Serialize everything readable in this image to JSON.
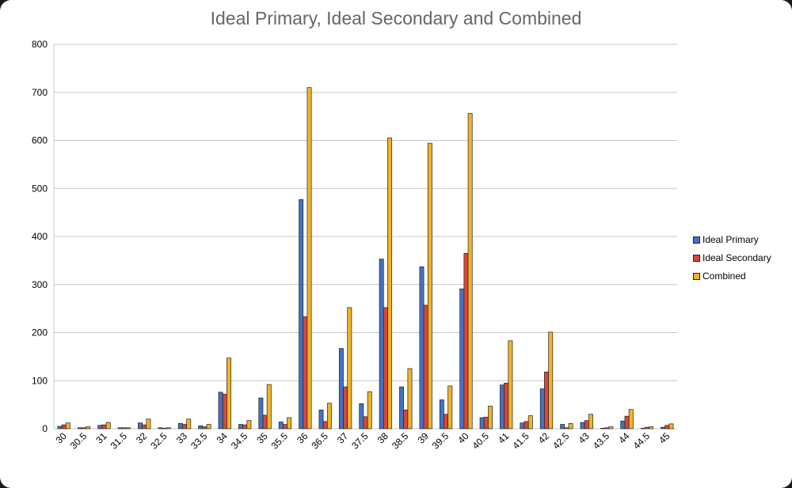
{
  "chart_data": {
    "type": "bar",
    "title": "Ideal Primary, Ideal Secondary and Combined",
    "xlabel": "",
    "ylabel": "",
    "ylim": [
      0,
      800
    ],
    "yticks": [
      0,
      100,
      200,
      300,
      400,
      500,
      600,
      700,
      800
    ],
    "grid": true,
    "legend_position": "right",
    "categories": [
      "30",
      "30.5",
      "31",
      "31.5",
      "32",
      "32.5",
      "33",
      "33.5",
      "34",
      "34.5",
      "35",
      "35.5",
      "36",
      "36.5",
      "37",
      "37.5",
      "38",
      "38.5",
      "39",
      "39.5",
      "40",
      "40.5",
      "41",
      "41.5",
      "42",
      "42.5",
      "43",
      "43.5",
      "44",
      "44.5",
      "45"
    ],
    "series": [
      {
        "name": "Ideal Primary",
        "color": "#4472C4",
        "values": [
          5,
          2,
          7,
          2,
          12,
          2,
          11,
          6,
          76,
          9,
          64,
          14,
          477,
          39,
          167,
          52,
          353,
          87,
          337,
          60,
          291,
          23,
          91,
          12,
          83,
          9,
          13,
          1,
          16,
          1,
          3
        ]
      },
      {
        "name": "Ideal Secondary",
        "color": "#D9463A",
        "values": [
          8,
          2,
          8,
          2,
          8,
          1,
          9,
          4,
          72,
          8,
          28,
          9,
          233,
          15,
          87,
          25,
          252,
          39,
          257,
          30,
          365,
          24,
          95,
          15,
          118,
          2,
          17,
          2,
          26,
          3,
          7
        ]
      },
      {
        "name": "Combined",
        "color": "#F0B429",
        "values": [
          12,
          4,
          13,
          2,
          20,
          2,
          20,
          9,
          147,
          17,
          92,
          23,
          710,
          53,
          252,
          77,
          605,
          125,
          594,
          89,
          656,
          47,
          183,
          27,
          201,
          11,
          30,
          4,
          40,
          4,
          10
        ]
      }
    ]
  }
}
